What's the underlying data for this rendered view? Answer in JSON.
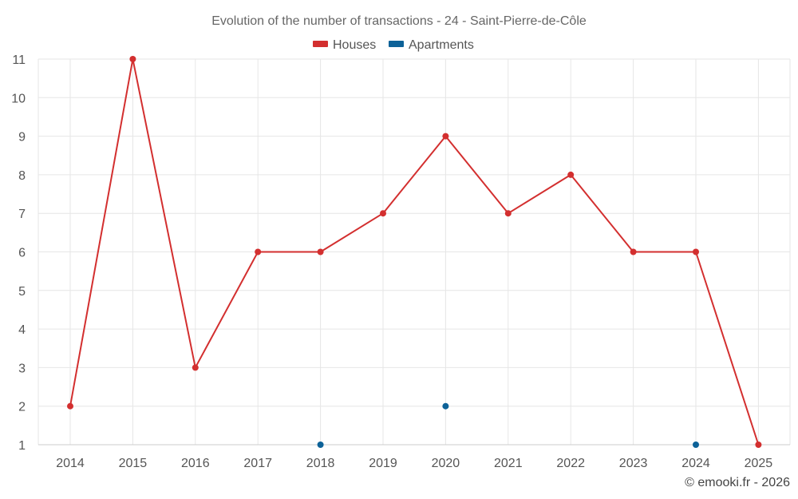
{
  "chart_data": {
    "type": "line",
    "title": "Evolution of the number of transactions - 24 - Saint-Pierre-de-Côle",
    "categories": [
      "2014",
      "2015",
      "2016",
      "2017",
      "2018",
      "2019",
      "2020",
      "2021",
      "2022",
      "2023",
      "2024",
      "2025"
    ],
    "ylim": [
      1,
      11
    ],
    "yticks": [
      1,
      2,
      3,
      4,
      5,
      6,
      7,
      8,
      9,
      10,
      11
    ],
    "grid": true,
    "legend_position": "top-center",
    "series": [
      {
        "name": "Houses",
        "color": "#d32f2f",
        "values": [
          2,
          11,
          3,
          6,
          6,
          7,
          9,
          7,
          8,
          6,
          6,
          1
        ],
        "line": true
      },
      {
        "name": "Apartments",
        "color": "#0d6298",
        "values": [
          null,
          null,
          null,
          null,
          1,
          null,
          2,
          null,
          null,
          null,
          1,
          null
        ],
        "line": false
      }
    ]
  },
  "credit": "© emooki.fr - 2026"
}
